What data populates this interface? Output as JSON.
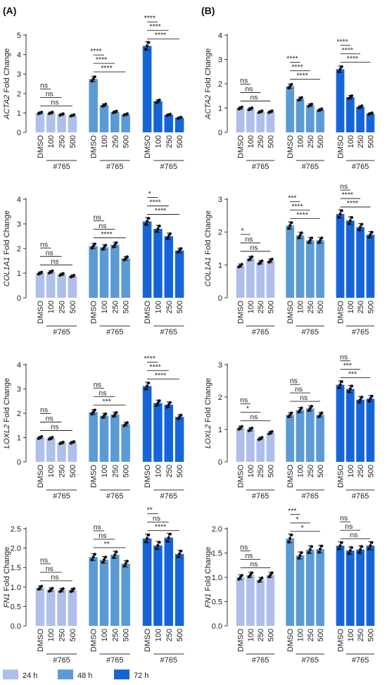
{
  "figure": {
    "panels": [
      {
        "key": "A",
        "label": "(A)"
      },
      {
        "key": "B",
        "label": "(B)"
      }
    ],
    "treatment_label": "#765",
    "legend": [
      {
        "label": "24 h",
        "color": "#aebfe9"
      },
      {
        "label": "48 h",
        "color": "#5b9bd5"
      },
      {
        "label": "72 h",
        "color": "#1665d8"
      }
    ]
  },
  "chart_data": [
    {
      "type": "bar",
      "panel": "A",
      "gene": "ACTA2",
      "ylabel_suffix": " Fold Change",
      "ylim": [
        0,
        5
      ],
      "yticks": [
        0,
        1,
        2,
        3,
        4,
        5
      ],
      "grid": false,
      "categories": [
        "DMSO",
        "100",
        "250",
        "500"
      ],
      "series": [
        {
          "name": "24 h",
          "values": [
            1.0,
            1.0,
            0.92,
            0.87
          ]
        },
        {
          "name": "48 h",
          "values": [
            2.75,
            1.4,
            1.05,
            0.92
          ]
        },
        {
          "name": "72 h",
          "values": [
            4.45,
            1.6,
            0.9,
            0.75
          ]
        }
      ],
      "significance": [
        {
          "group": 0,
          "from": 0,
          "to": 1,
          "text": "ns"
        },
        {
          "group": 0,
          "from": 0,
          "to": 2,
          "text": "ns"
        },
        {
          "group": 0,
          "from": 0,
          "to": 3,
          "text": "ns"
        },
        {
          "group": 1,
          "from": 0,
          "to": 1,
          "text": "****"
        },
        {
          "group": 1,
          "from": 0,
          "to": 2,
          "text": "****"
        },
        {
          "group": 1,
          "from": 0,
          "to": 3,
          "text": "****"
        },
        {
          "group": 2,
          "from": 0,
          "to": 1,
          "text": "****"
        },
        {
          "group": 2,
          "from": 0,
          "to": 2,
          "text": "****"
        },
        {
          "group": 2,
          "from": 0,
          "to": 3,
          "text": "****"
        }
      ]
    },
    {
      "type": "bar",
      "panel": "B",
      "gene": "ACTA2",
      "ylabel_suffix": " Fold Change",
      "ylim": [
        0,
        4
      ],
      "yticks": [
        0,
        1,
        2,
        3,
        4
      ],
      "grid": false,
      "categories": [
        "DMSO",
        "100",
        "250",
        "500"
      ],
      "series": [
        {
          "name": "24 h",
          "values": [
            1.0,
            0.97,
            0.85,
            0.85
          ]
        },
        {
          "name": "48 h",
          "values": [
            1.9,
            1.38,
            1.12,
            0.93
          ]
        },
        {
          "name": "72 h",
          "values": [
            2.6,
            1.45,
            1.05,
            0.77
          ]
        }
      ],
      "significance": [
        {
          "group": 0,
          "from": 0,
          "to": 1,
          "text": "ns"
        },
        {
          "group": 0,
          "from": 0,
          "to": 2,
          "text": "ns"
        },
        {
          "group": 0,
          "from": 0,
          "to": 3,
          "text": "ns"
        },
        {
          "group": 1,
          "from": 0,
          "to": 1,
          "text": "****"
        },
        {
          "group": 1,
          "from": 0,
          "to": 2,
          "text": "****"
        },
        {
          "group": 1,
          "from": 0,
          "to": 3,
          "text": "****"
        },
        {
          "group": 2,
          "from": 0,
          "to": 1,
          "text": "****"
        },
        {
          "group": 2,
          "from": 0,
          "to": 2,
          "text": "****"
        },
        {
          "group": 2,
          "from": 0,
          "to": 3,
          "text": "****"
        }
      ]
    },
    {
      "type": "bar",
      "panel": "A",
      "gene": "COL1A1",
      "ylabel_suffix": " Fold Change",
      "ylim": [
        0,
        4
      ],
      "yticks": [
        0,
        1,
        2,
        3,
        4
      ],
      "grid": false,
      "categories": [
        "DMSO",
        "100",
        "250",
        "500"
      ],
      "series": [
        {
          "name": "24 h",
          "values": [
            1.0,
            1.05,
            0.95,
            0.88
          ]
        },
        {
          "name": "48 h",
          "values": [
            2.1,
            2.05,
            2.15,
            1.6
          ]
        },
        {
          "name": "72 h",
          "values": [
            3.1,
            2.8,
            2.5,
            1.92
          ]
        }
      ],
      "significance": [
        {
          "group": 0,
          "from": 0,
          "to": 1,
          "text": "ns"
        },
        {
          "group": 0,
          "from": 0,
          "to": 2,
          "text": "ns"
        },
        {
          "group": 0,
          "from": 0,
          "to": 3,
          "text": "ns"
        },
        {
          "group": 1,
          "from": 0,
          "to": 1,
          "text": "ns"
        },
        {
          "group": 1,
          "from": 0,
          "to": 2,
          "text": "ns"
        },
        {
          "group": 1,
          "from": 0,
          "to": 3,
          "text": "****"
        },
        {
          "group": 2,
          "from": 0,
          "to": 1,
          "text": "*"
        },
        {
          "group": 2,
          "from": 0,
          "to": 2,
          "text": "****"
        },
        {
          "group": 2,
          "from": 0,
          "to": 3,
          "text": "****"
        }
      ]
    },
    {
      "type": "bar",
      "panel": "B",
      "gene": "COL1A1",
      "ylabel_suffix": " Fold Change",
      "ylim": [
        0,
        3
      ],
      "yticks": [
        0,
        1,
        2,
        3
      ],
      "grid": false,
      "categories": [
        "DMSO",
        "100",
        "250",
        "500"
      ],
      "series": [
        {
          "name": "24 h",
          "values": [
            0.98,
            1.2,
            1.08,
            1.13
          ]
        },
        {
          "name": "48 h",
          "values": [
            2.2,
            1.9,
            1.75,
            1.75
          ]
        },
        {
          "name": "72 h",
          "values": [
            2.55,
            2.35,
            2.15,
            1.92
          ]
        }
      ],
      "significance": [
        {
          "group": 0,
          "from": 0,
          "to": 1,
          "text": "*"
        },
        {
          "group": 0,
          "from": 0,
          "to": 2,
          "text": "ns"
        },
        {
          "group": 0,
          "from": 0,
          "to": 3,
          "text": "ns"
        },
        {
          "group": 1,
          "from": 0,
          "to": 1,
          "text": "***"
        },
        {
          "group": 1,
          "from": 0,
          "to": 2,
          "text": "****"
        },
        {
          "group": 1,
          "from": 0,
          "to": 3,
          "text": "****"
        },
        {
          "group": 2,
          "from": 0,
          "to": 1,
          "text": "ns"
        },
        {
          "group": 2,
          "from": 0,
          "to": 2,
          "text": "****"
        },
        {
          "group": 2,
          "from": 0,
          "to": 3,
          "text": "****"
        }
      ]
    },
    {
      "type": "bar",
      "panel": "A",
      "gene": "LOXL2",
      "ylabel_suffix": " Fold Change",
      "ylim": [
        0,
        4
      ],
      "yticks": [
        0,
        1,
        2,
        3,
        4
      ],
      "grid": false,
      "categories": [
        "DMSO",
        "100",
        "250",
        "500"
      ],
      "series": [
        {
          "name": "24 h",
          "values": [
            1.0,
            0.97,
            0.78,
            0.8
          ]
        },
        {
          "name": "48 h",
          "values": [
            2.05,
            1.9,
            1.95,
            1.55
          ]
        },
        {
          "name": "72 h",
          "values": [
            3.12,
            2.42,
            2.35,
            1.85
          ]
        }
      ],
      "significance": [
        {
          "group": 0,
          "from": 0,
          "to": 1,
          "text": "ns"
        },
        {
          "group": 0,
          "from": 0,
          "to": 2,
          "text": "ns"
        },
        {
          "group": 0,
          "from": 0,
          "to": 3,
          "text": "ns"
        },
        {
          "group": 1,
          "from": 0,
          "to": 1,
          "text": "ns"
        },
        {
          "group": 1,
          "from": 0,
          "to": 2,
          "text": "ns"
        },
        {
          "group": 1,
          "from": 0,
          "to": 3,
          "text": "***"
        },
        {
          "group": 2,
          "from": 0,
          "to": 1,
          "text": "****"
        },
        {
          "group": 2,
          "from": 0,
          "to": 2,
          "text": "****"
        },
        {
          "group": 2,
          "from": 0,
          "to": 3,
          "text": "****"
        }
      ]
    },
    {
      "type": "bar",
      "panel": "B",
      "gene": "LOXL2",
      "ylabel_suffix": " Fold Change",
      "ylim": [
        0,
        3
      ],
      "yticks": [
        0,
        1,
        2,
        3
      ],
      "grid": false,
      "categories": [
        "DMSO",
        "100",
        "250",
        "500"
      ],
      "series": [
        {
          "name": "24 h",
          "values": [
            1.05,
            1.0,
            0.72,
            0.9
          ]
        },
        {
          "name": "48 h",
          "values": [
            1.45,
            1.6,
            1.65,
            1.45
          ]
        },
        {
          "name": "72 h",
          "values": [
            2.38,
            2.25,
            1.92,
            1.95
          ]
        }
      ],
      "significance": [
        {
          "group": 0,
          "from": 0,
          "to": 1,
          "text": "ns"
        },
        {
          "group": 0,
          "from": 0,
          "to": 2,
          "text": "*"
        },
        {
          "group": 0,
          "from": 0,
          "to": 3,
          "text": "ns"
        },
        {
          "group": 1,
          "from": 0,
          "to": 1,
          "text": "ns"
        },
        {
          "group": 1,
          "from": 0,
          "to": 2,
          "text": "ns"
        },
        {
          "group": 1,
          "from": 0,
          "to": 3,
          "text": "ns"
        },
        {
          "group": 2,
          "from": 0,
          "to": 1,
          "text": "ns"
        },
        {
          "group": 2,
          "from": 0,
          "to": 2,
          "text": "***"
        },
        {
          "group": 2,
          "from": 0,
          "to": 3,
          "text": "***"
        }
      ]
    },
    {
      "type": "bar",
      "panel": "A",
      "gene": "FN1",
      "ylabel_suffix": " Fold Change",
      "ylim": [
        0,
        2.5
      ],
      "yticks": [
        "0.0",
        "0.5",
        "1.0",
        "1.5",
        "2.0",
        "2.5"
      ],
      "grid": false,
      "categories": [
        "DMSO",
        "100",
        "250",
        "500"
      ],
      "series": [
        {
          "name": "24 h",
          "values": [
            0.98,
            0.93,
            0.92,
            0.92
          ]
        },
        {
          "name": "48 h",
          "values": [
            1.77,
            1.7,
            1.83,
            1.6
          ]
        },
        {
          "name": "72 h",
          "values": [
            2.25,
            2.07,
            2.27,
            1.85
          ]
        }
      ],
      "significance": [
        {
          "group": 0,
          "from": 0,
          "to": 1,
          "text": "ns"
        },
        {
          "group": 0,
          "from": 0,
          "to": 2,
          "text": "ns"
        },
        {
          "group": 0,
          "from": 0,
          "to": 3,
          "text": "ns"
        },
        {
          "group": 1,
          "from": 0,
          "to": 1,
          "text": "ns"
        },
        {
          "group": 1,
          "from": 0,
          "to": 2,
          "text": "ns"
        },
        {
          "group": 1,
          "from": 0,
          "to": 3,
          "text": "**"
        },
        {
          "group": 2,
          "from": 0,
          "to": 1,
          "text": "**"
        },
        {
          "group": 2,
          "from": 0,
          "to": 2,
          "text": "ns"
        },
        {
          "group": 2,
          "from": 0,
          "to": 3,
          "text": "****"
        }
      ]
    },
    {
      "type": "bar",
      "panel": "B",
      "gene": "FN1",
      "ylabel_suffix": " Fold Change",
      "ylim": [
        0,
        2
      ],
      "yticks": [
        "0.0",
        "0.5",
        "1.0",
        "1.5",
        "2.0"
      ],
      "grid": false,
      "categories": [
        "DMSO",
        "100",
        "250",
        "500"
      ],
      "series": [
        {
          "name": "24 h",
          "values": [
            1.0,
            1.05,
            0.95,
            1.05
          ]
        },
        {
          "name": "48 h",
          "values": [
            1.8,
            1.45,
            1.57,
            1.58
          ]
        },
        {
          "name": "72 h",
          "values": [
            1.65,
            1.55,
            1.57,
            1.65
          ]
        }
      ],
      "significance": [
        {
          "group": 0,
          "from": 0,
          "to": 1,
          "text": "ns"
        },
        {
          "group": 0,
          "from": 0,
          "to": 2,
          "text": "ns"
        },
        {
          "group": 0,
          "from": 0,
          "to": 3,
          "text": "ns"
        },
        {
          "group": 1,
          "from": 0,
          "to": 1,
          "text": "***"
        },
        {
          "group": 1,
          "from": 0,
          "to": 2,
          "text": "*"
        },
        {
          "group": 1,
          "from": 0,
          "to": 3,
          "text": "*"
        },
        {
          "group": 2,
          "from": 0,
          "to": 1,
          "text": "ns"
        },
        {
          "group": 2,
          "from": 0,
          "to": 2,
          "text": "ns"
        },
        {
          "group": 2,
          "from": 0,
          "to": 3,
          "text": "ns"
        }
      ]
    }
  ]
}
